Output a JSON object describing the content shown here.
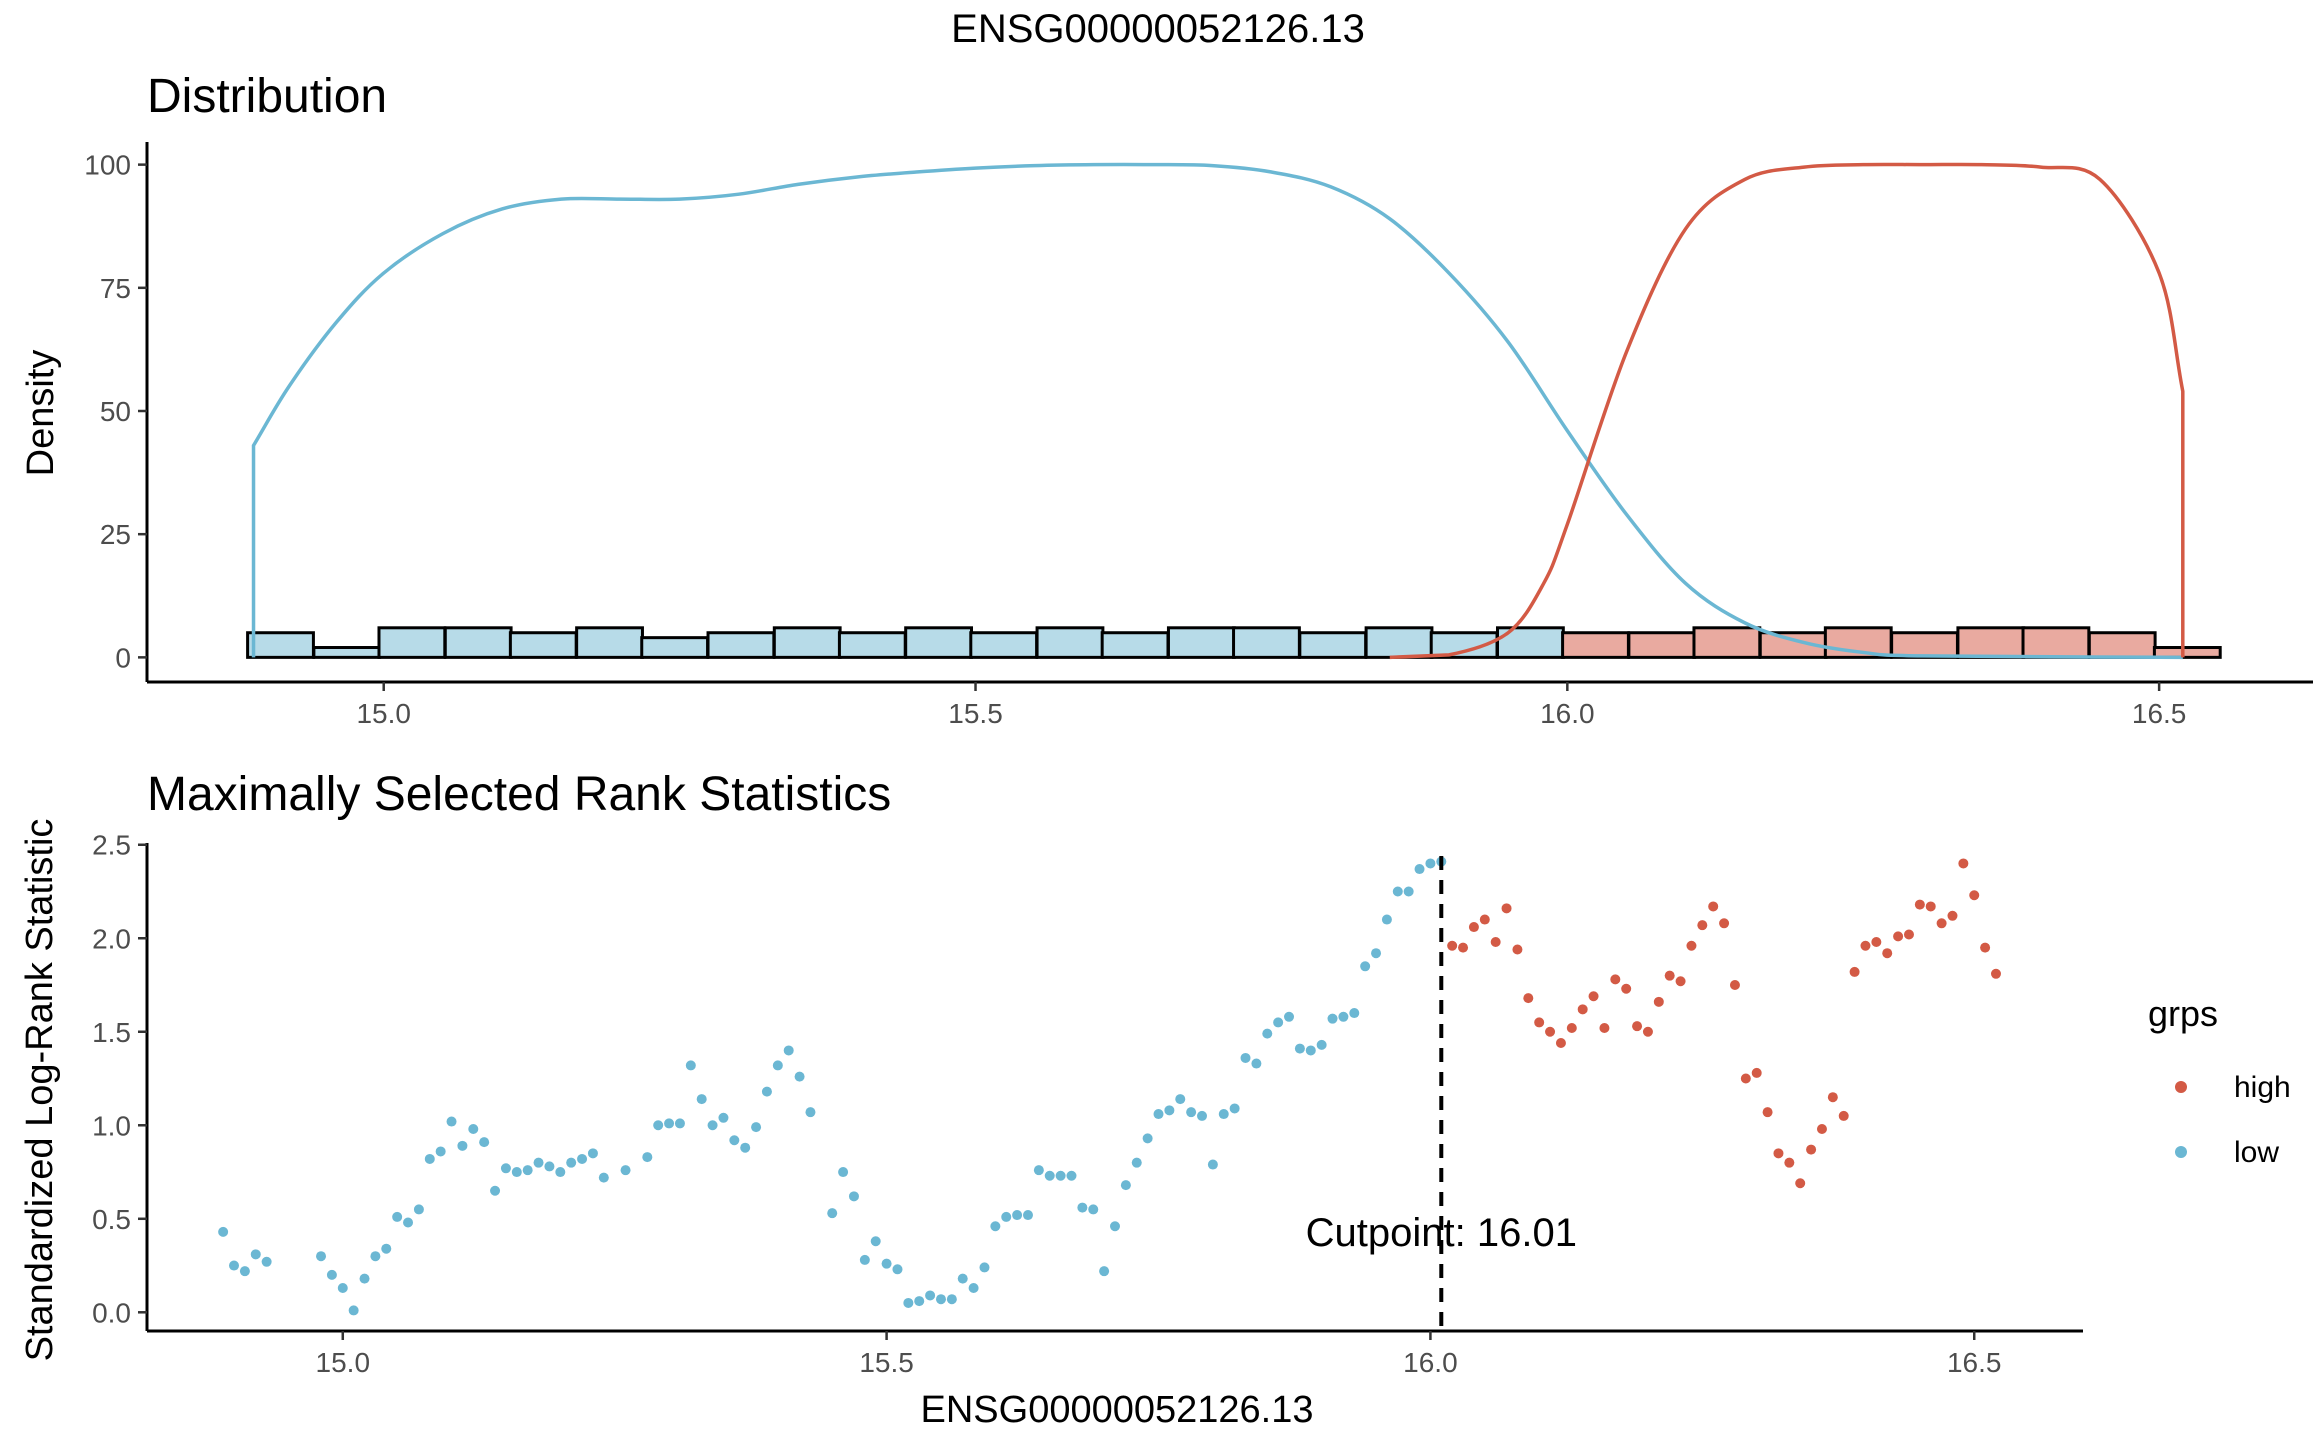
{
  "figure": {
    "title": "ENSG00000052126.13"
  },
  "colors": {
    "low": "#6BB7D3",
    "high": "#D35A45",
    "low_fill": "#B7DBE8",
    "high_fill": "#E9AAA0",
    "axis": "#000000",
    "tick_text": "#4d4d4d"
  },
  "chart_data": [
    {
      "type": "area",
      "title": "Distribution",
      "xlabel": "",
      "ylabel": "Density",
      "xlim": [
        14.8,
        16.63
      ],
      "ylim": [
        -5,
        105
      ],
      "x_ticks": [
        15.0,
        15.5,
        16.0,
        16.5
      ],
      "x_tick_labels": [
        "15.0",
        "15.5",
        "16.0",
        "16.5"
      ],
      "y_ticks": [
        0,
        25,
        50,
        75,
        100
      ],
      "y_tick_labels": [
        "0",
        "25",
        "50",
        "75",
        "100"
      ],
      "grid": false,
      "histogram": {
        "bin_width": 0.0556,
        "bins": [
          {
            "x0": 14.885,
            "count": 5,
            "group": "low"
          },
          {
            "x0": 14.941,
            "count": 2,
            "group": "low"
          },
          {
            "x0": 14.996,
            "count": 6,
            "group": "low"
          },
          {
            "x0": 15.052,
            "count": 6,
            "group": "low"
          },
          {
            "x0": 15.107,
            "count": 5,
            "group": "low"
          },
          {
            "x0": 15.163,
            "count": 6,
            "group": "low"
          },
          {
            "x0": 15.218,
            "count": 4,
            "group": "low"
          },
          {
            "x0": 15.274,
            "count": 5,
            "group": "low"
          },
          {
            "x0": 15.33,
            "count": 6,
            "group": "low"
          },
          {
            "x0": 15.385,
            "count": 5,
            "group": "low"
          },
          {
            "x0": 15.441,
            "count": 6,
            "group": "low"
          },
          {
            "x0": 15.496,
            "count": 5,
            "group": "low"
          },
          {
            "x0": 15.552,
            "count": 6,
            "group": "low"
          },
          {
            "x0": 15.607,
            "count": 5,
            "group": "low"
          },
          {
            "x0": 15.663,
            "count": 6,
            "group": "low"
          },
          {
            "x0": 15.718,
            "count": 6,
            "group": "low"
          },
          {
            "x0": 15.774,
            "count": 5,
            "group": "low"
          },
          {
            "x0": 15.83,
            "count": 6,
            "group": "low"
          },
          {
            "x0": 15.885,
            "count": 5,
            "group": "low"
          },
          {
            "x0": 15.941,
            "count": 6,
            "group": "low"
          },
          {
            "x0": 15.996,
            "count": 5,
            "group": "high"
          },
          {
            "x0": 16.052,
            "count": 5,
            "group": "high"
          },
          {
            "x0": 16.107,
            "count": 6,
            "group": "high"
          },
          {
            "x0": 16.163,
            "count": 5,
            "group": "high"
          },
          {
            "x0": 16.218,
            "count": 6,
            "group": "high"
          },
          {
            "x0": 16.274,
            "count": 5,
            "group": "high"
          },
          {
            "x0": 16.33,
            "count": 6,
            "group": "high"
          },
          {
            "x0": 16.385,
            "count": 6,
            "group": "high"
          },
          {
            "x0": 16.441,
            "count": 5,
            "group": "high"
          },
          {
            "x0": 16.496,
            "count": 2,
            "group": "high"
          }
        ]
      },
      "series": [
        {
          "name": "low",
          "x": [
            14.89,
            14.89,
            14.92,
            14.96,
            15.0,
            15.05,
            15.1,
            15.15,
            15.2,
            15.25,
            15.3,
            15.35,
            15.4,
            15.45,
            15.5,
            15.55,
            15.6,
            15.65,
            15.7,
            15.75,
            15.8,
            15.85,
            15.9,
            15.95,
            16.0,
            16.05,
            16.1,
            16.15,
            16.2,
            16.25,
            16.3,
            16.52
          ],
          "y": [
            0,
            43,
            55,
            68,
            78,
            86,
            91,
            93,
            93,
            93,
            94,
            96,
            97.5,
            98.5,
            99.3,
            99.8,
            100,
            100,
            99.8,
            98.5,
            95.5,
            89,
            78,
            64,
            46,
            29,
            15,
            7,
            3,
            1,
            0.3,
            0
          ]
        },
        {
          "name": "high",
          "x": [
            15.85,
            15.9,
            15.95,
            15.98,
            16.0,
            16.05,
            16.1,
            16.15,
            16.2,
            16.25,
            16.3,
            16.35,
            16.4,
            16.45,
            16.5,
            16.52,
            16.52
          ],
          "y": [
            0,
            0.5,
            5,
            15,
            27,
            62,
            87,
            97,
            99.5,
            100,
            100,
            100,
            99.5,
            97,
            78,
            54,
            0
          ]
        }
      ]
    },
    {
      "type": "scatter",
      "title": "Maximally Selected Rank Statistics",
      "xlabel": "ENSG00000052126.13",
      "ylabel": "Standardized Log-Rank Statistic",
      "xlim": [
        14.82,
        16.6
      ],
      "ylim": [
        -0.1,
        2.52
      ],
      "x_ticks": [
        15.0,
        15.5,
        16.0,
        16.5
      ],
      "x_tick_labels": [
        "15.0",
        "15.5",
        "16.0",
        "16.5"
      ],
      "y_ticks": [
        0.0,
        0.5,
        1.0,
        1.5,
        2.0,
        2.5
      ],
      "y_tick_labels": [
        "0.0",
        "0.5",
        "1.0",
        "1.5",
        "2.0",
        "2.5"
      ],
      "grid": false,
      "cutpoint": {
        "x": 16.01,
        "label": "Cutpoint: 16.01"
      },
      "legend": {
        "title": "grps",
        "position": "right",
        "entries": [
          "high",
          "low"
        ]
      },
      "series": [
        {
          "name": "low",
          "x": [
            14.89,
            14.9,
            14.91,
            14.92,
            14.93,
            14.98,
            14.99,
            15.0,
            15.01,
            15.02,
            15.03,
            15.04,
            15.05,
            15.06,
            15.07,
            15.08,
            15.09,
            15.1,
            15.11,
            15.12,
            15.13,
            15.14,
            15.15,
            15.16,
            15.17,
            15.18,
            15.19,
            15.2,
            15.21,
            15.22,
            15.23,
            15.24,
            15.26,
            15.28,
            15.29,
            15.3,
            15.31,
            15.32,
            15.33,
            15.34,
            15.35,
            15.36,
            15.37,
            15.38,
            15.39,
            15.4,
            15.41,
            15.42,
            15.43,
            15.45,
            15.46,
            15.47,
            15.48,
            15.49,
            15.5,
            15.51,
            15.52,
            15.53,
            15.54,
            15.55,
            15.56,
            15.57,
            15.58,
            15.59,
            15.6,
            15.61,
            15.62,
            15.63,
            15.64,
            15.65,
            15.66,
            15.67,
            15.68,
            15.69,
            15.7,
            15.71,
            15.72,
            15.73,
            15.74,
            15.75,
            15.76,
            15.77,
            15.78,
            15.79,
            15.8,
            15.81,
            15.82,
            15.83,
            15.84,
            15.85,
            15.86,
            15.87,
            15.88,
            15.89,
            15.9,
            15.91,
            15.92,
            15.93,
            15.94,
            15.95,
            15.96,
            15.97,
            15.98,
            15.99,
            16.0,
            16.01
          ],
          "y": [
            0.43,
            0.25,
            0.22,
            0.31,
            0.27,
            0.3,
            0.2,
            0.13,
            0.01,
            0.18,
            0.3,
            0.34,
            0.51,
            0.48,
            0.55,
            0.82,
            0.86,
            1.02,
            0.89,
            0.98,
            0.91,
            0.65,
            0.77,
            0.75,
            0.76,
            0.8,
            0.78,
            0.75,
            0.8,
            0.82,
            0.85,
            0.72,
            0.76,
            0.83,
            1.0,
            1.01,
            1.01,
            1.32,
            1.14,
            1.0,
            1.04,
            0.92,
            0.88,
            0.99,
            1.18,
            1.32,
            1.4,
            1.26,
            1.07,
            0.53,
            0.75,
            0.62,
            0.28,
            0.38,
            0.26,
            0.23,
            0.05,
            0.06,
            0.09,
            0.07,
            0.07,
            0.18,
            0.13,
            0.24,
            0.46,
            0.51,
            0.52,
            0.52,
            0.76,
            0.73,
            0.73,
            0.73,
            0.56,
            0.55,
            0.22,
            0.46,
            0.68,
            0.8,
            0.93,
            1.06,
            1.08,
            1.14,
            1.07,
            1.05,
            0.79,
            1.06,
            1.09,
            1.36,
            1.33,
            1.49,
            1.55,
            1.58,
            1.41,
            1.4,
            1.43,
            1.57,
            1.58,
            1.6,
            1.85,
            1.92,
            2.1,
            2.25,
            2.25,
            2.37,
            2.4,
            2.41
          ]
        },
        {
          "name": "high",
          "x": [
            16.02,
            16.03,
            16.04,
            16.05,
            16.06,
            16.07,
            16.08,
            16.09,
            16.1,
            16.11,
            16.12,
            16.13,
            16.14,
            16.15,
            16.16,
            16.17,
            16.18,
            16.19,
            16.2,
            16.21,
            16.22,
            16.23,
            16.24,
            16.25,
            16.26,
            16.27,
            16.28,
            16.29,
            16.3,
            16.31,
            16.32,
            16.33,
            16.34,
            16.35,
            16.36,
            16.37,
            16.38,
            16.39,
            16.4,
            16.41,
            16.42,
            16.43,
            16.44,
            16.45,
            16.46,
            16.47,
            16.48,
            16.49,
            16.5,
            16.51,
            16.52
          ],
          "y": [
            1.96,
            1.95,
            2.06,
            2.1,
            1.98,
            2.16,
            1.94,
            1.68,
            1.55,
            1.5,
            1.44,
            1.52,
            1.62,
            1.69,
            1.52,
            1.78,
            1.73,
            1.53,
            1.5,
            1.66,
            1.8,
            1.77,
            1.96,
            2.07,
            2.17,
            2.08,
            1.75,
            1.25,
            1.28,
            1.07,
            0.85,
            0.8,
            0.69,
            0.87,
            0.98,
            1.15,
            1.05,
            1.82,
            1.96,
            1.98,
            1.92,
            2.01,
            2.02,
            2.18,
            2.17,
            2.08,
            2.12,
            2.4,
            2.23,
            1.95,
            1.81
          ]
        }
      ]
    }
  ]
}
